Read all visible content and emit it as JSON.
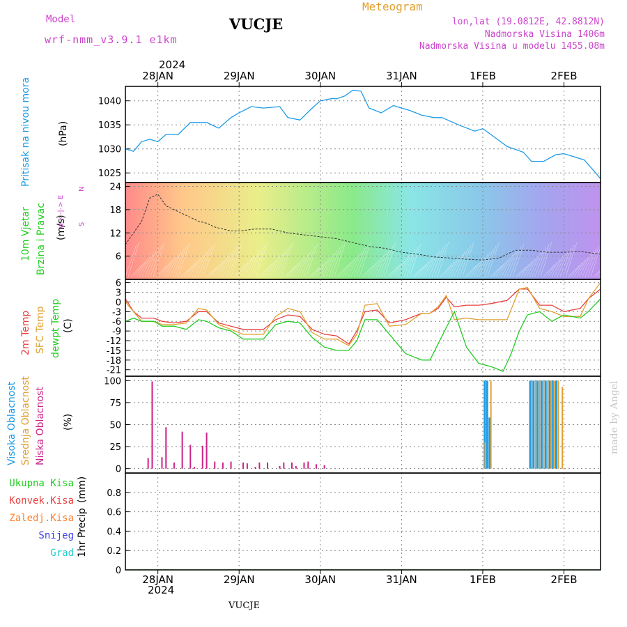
{
  "header": {
    "model_label": "Model",
    "model_name": "wrf-nmm_v3.9.1 e1km",
    "station": "VUCJE",
    "meteogram": "Meteogram",
    "lonlat": "lon,lat (19.0812E, 42.8812N)",
    "altitude": "Nadmorska Visina 1406m",
    "model_altitude": "Nadmorska Visina u modelu 1455.08m",
    "top_year": "2024",
    "bottom_year": "2024",
    "footer_station": "VUCJE",
    "watermark": "made by Angel"
  },
  "colors": {
    "pressure": "#1e9be6",
    "temp2m": "#e84040",
    "sfc_temp": "#e0a030",
    "dewpt": "#22cc22",
    "high_cloud": "#1e9be6",
    "mid_cloud": "#e0a030",
    "low_cloud": "#cc2288",
    "magenta_label": "#cc44cc",
    "precip_total": "#22cc22",
    "precip_conv": "#e84040",
    "precip_frozen": "#ff7f2a",
    "precip_snow": "#4040e0",
    "precip_grad": "#22cccc"
  },
  "panel_labels": {
    "pressure": [
      "Pritisak na nivou mora",
      "(hPa)"
    ],
    "wind": [
      "10m Vjetar",
      "Brzina i Pravac",
      "(m/s)"
    ],
    "wind_compass": [
      "N",
      "w <-|-> E",
      "S"
    ],
    "temp": [
      "2m Temp",
      "SFC Temp",
      "dewpt Temp",
      "(C)"
    ],
    "cloud": [
      "Visoka Oblacnost",
      "Srednja Oblacnost",
      "Niska Oblacnost",
      "(%)"
    ],
    "precip_legend": [
      "Ukupna Kisa",
      "Konvek.Kisa",
      "Zaledj.Kisa",
      "Snijeg",
      "Grad"
    ],
    "precip_axis": [
      "1hr Precip",
      "(mm)"
    ]
  },
  "chart_data": {
    "type": "line",
    "x_axis": {
      "start_day": 27.6,
      "end_day": 33.45,
      "day_labels": [
        "28JAN",
        "29JAN",
        "30JAN",
        "31JAN",
        "1FEB",
        "2FEB"
      ],
      "day_values": [
        28,
        29,
        30,
        31,
        32,
        33
      ]
    },
    "panels": [
      {
        "name": "pressure",
        "ylim": [
          1023,
          1043
        ],
        "yticks": [
          1025,
          1030,
          1035,
          1040
        ],
        "series": [
          {
            "name": "Pritisak",
            "x": [
              27.6,
              27.7,
              27.8,
              27.9,
              28.0,
              28.1,
              28.25,
              28.4,
              28.6,
              28.75,
              28.9,
              29.0,
              29.15,
              29.3,
              29.5,
              29.6,
              29.75,
              29.9,
              30.0,
              30.15,
              30.2,
              30.3,
              30.4,
              30.5,
              30.6,
              30.75,
              30.9,
              31.1,
              31.25,
              31.4,
              31.5,
              31.7,
              31.9,
              32.0,
              32.1,
              32.3,
              32.5,
              32.6,
              32.75,
              32.9,
              33.0,
              33.1,
              33.25,
              33.4,
              33.45
            ],
            "y": [
              1030,
              1029.5,
              1031.5,
              1032,
              1031.5,
              1033,
              1033,
              1035.5,
              1035.5,
              1034.3,
              1036.5,
              1037.5,
              1038.8,
              1038.5,
              1038.8,
              1036.5,
              1036,
              1038.5,
              1040,
              1040.5,
              1040.4,
              1041,
              1042.2,
              1042,
              1038.5,
              1037.5,
              1039,
              1038,
              1037,
              1036.5,
              1036.5,
              1035,
              1033.7,
              1034.2,
              1033,
              1030.5,
              1029.3,
              1027.4,
              1027.4,
              1028.8,
              1029,
              1028.5,
              1027.7,
              1024.8,
              1023.8
            ]
          }
        ]
      },
      {
        "name": "wind",
        "ylim": [
          0,
          25
        ],
        "yticks": [
          6,
          12,
          18,
          24
        ],
        "series": [
          {
            "name": "wind_speed",
            "x": [
              27.6,
              27.7,
              27.8,
              27.9,
              28.0,
              28.1,
              28.2,
              28.3,
              28.4,
              28.5,
              28.6,
              28.7,
              28.8,
              28.9,
              29.0,
              29.2,
              29.4,
              29.6,
              29.8,
              30.0,
              30.2,
              30.4,
              30.6,
              30.8,
              31.0,
              31.2,
              31.4,
              31.6,
              31.8,
              32.0,
              32.2,
              32.4,
              32.6,
              32.8,
              33.0,
              33.2,
              33.45
            ],
            "y": [
              9,
              12,
              15,
              21,
              22,
              19,
              18,
              17,
              16,
              15,
              14.5,
              13.5,
              13,
              12.5,
              12.5,
              13,
              13,
              12,
              11.5,
              11,
              10.5,
              9.5,
              8.5,
              8,
              7,
              6.5,
              5.8,
              5.5,
              5.2,
              5,
              5.5,
              7.5,
              7.5,
              7,
              7,
              7.2,
              6.5
            ]
          }
        ]
      },
      {
        "name": "temp",
        "ylim": [
          -23,
          7
        ],
        "yticks": [
          6,
          3,
          0,
          -3,
          -6,
          -9,
          -12,
          -15,
          -18,
          -21
        ],
        "series": [
          {
            "name": "2m Temp",
            "x": [
              27.6,
              27.7,
              27.8,
              27.95,
              28.05,
              28.2,
              28.35,
              28.5,
              28.6,
              28.75,
              28.9,
              29.05,
              29.3,
              29.45,
              29.6,
              29.75,
              29.9,
              30.05,
              30.2,
              30.35,
              30.45,
              30.55,
              30.7,
              30.85,
              31.05,
              31.25,
              31.35,
              31.45,
              31.55,
              31.65,
              31.8,
              31.95,
              32.1,
              32.3,
              32.45,
              32.55,
              32.7,
              32.85,
              33.0,
              33.2,
              33.3,
              33.45
            ],
            "y": [
              1,
              -3,
              -5,
              -5,
              -6,
              -6.5,
              -6,
              -3,
              -3,
              -6.5,
              -7.5,
              -8.5,
              -8.5,
              -5.5,
              -4,
              -4.5,
              -8.5,
              -10,
              -10.5,
              -13,
              -9,
              -3,
              -2.5,
              -6.5,
              -5.5,
              -3.5,
              -3.5,
              -2,
              1.5,
              -1.5,
              -1,
              -1,
              -0.5,
              0.5,
              4,
              4,
              -1,
              -1,
              -3,
              -2,
              1,
              4
            ]
          },
          {
            "name": "SFC Temp",
            "x": [
              27.6,
              27.7,
              27.8,
              27.95,
              28.05,
              28.2,
              28.35,
              28.5,
              28.6,
              28.75,
              28.9,
              29.05,
              29.3,
              29.45,
              29.6,
              29.75,
              29.9,
              30.05,
              30.2,
              30.35,
              30.45,
              30.55,
              30.7,
              30.85,
              31.05,
              31.25,
              31.35,
              31.45,
              31.55,
              31.65,
              31.8,
              31.95,
              32.1,
              32.3,
              32.45,
              32.55,
              32.7,
              32.85,
              33.0,
              33.2,
              33.3,
              33.45
            ],
            "y": [
              0,
              -3,
              -6,
              -6,
              -7,
              -7,
              -6.5,
              -2,
              -2.5,
              -7,
              -8.5,
              -10,
              -10,
              -4.5,
              -2,
              -3,
              -9.5,
              -11.5,
              -11.5,
              -13.5,
              -10,
              -1,
              -0.5,
              -7.5,
              -7,
              -3.5,
              -3.5,
              -1.5,
              2,
              -5.5,
              -5,
              -5.5,
              -5.5,
              -5.5,
              4,
              4.5,
              -2,
              -3,
              -4.5,
              -4.5,
              1,
              6
            ]
          },
          {
            "name": "dewpt Temp",
            "x": [
              27.6,
              27.7,
              27.8,
              27.95,
              28.05,
              28.2,
              28.35,
              28.5,
              28.6,
              28.75,
              28.9,
              29.05,
              29.3,
              29.45,
              29.6,
              29.75,
              29.9,
              30.05,
              30.2,
              30.35,
              30.45,
              30.55,
              30.7,
              30.85,
              31.05,
              31.25,
              31.35,
              31.45,
              31.55,
              31.65,
              31.8,
              31.95,
              32.1,
              32.25,
              32.35,
              32.45,
              32.55,
              32.7,
              32.85,
              33.0,
              33.2,
              33.3,
              33.45
            ],
            "y": [
              -6,
              -5,
              -6,
              -6,
              -7.5,
              -7.5,
              -8.5,
              -5.5,
              -6,
              -8,
              -9,
              -11.5,
              -11.5,
              -7,
              -6,
              -6.5,
              -11,
              -14,
              -15,
              -15,
              -12,
              -5.5,
              -5.5,
              -10,
              -16,
              -18,
              -18,
              -13,
              -8,
              -3,
              -14,
              -19,
              -20,
              -21.5,
              -16,
              -9,
              -4,
              -3,
              -6,
              -4,
              -5,
              -3,
              1
            ]
          }
        ]
      },
      {
        "name": "cloud",
        "ylim": [
          -5,
          105
        ],
        "yticks": [
          0,
          25,
          50,
          75,
          100
        ],
        "series": [
          {
            "name": "Niska Oblacnost",
            "x": [
              27.88,
              27.93,
              28.05,
              28.1,
              28.2,
              28.3,
              28.4,
              28.45,
              28.55,
              28.6,
              28.7,
              28.8,
              28.9,
              29.05,
              29.1,
              29.2,
              29.25,
              29.35,
              29.5,
              29.55,
              29.65,
              29.7,
              29.8,
              29.85,
              29.95,
              30.05,
              33.45
            ],
            "y": [
              12,
              99,
              13,
              47,
              7,
              42,
              27,
              2,
              26,
              41,
              8,
              7,
              8,
              7,
              6,
              2,
              7,
              7,
              3,
              7,
              7,
              3,
              7,
              8,
              5,
              4,
              0
            ]
          },
          {
            "name": "Visoka Oblacnost",
            "x": [
              32.02,
              32.05,
              32.08,
              32.58,
              32.62,
              32.67,
              32.72,
              32.77,
              32.82,
              32.86,
              32.9
            ],
            "y": [
              100,
              100,
              58,
              100,
              100,
              100,
              100,
              100,
              100,
              100,
              100
            ]
          },
          {
            "name": "Srednja Oblacnost",
            "x": [
              32.03,
              32.1,
              32.6,
              32.65,
              32.7,
              32.75,
              32.8,
              32.84,
              32.88,
              32.93,
              32.98
            ],
            "y": [
              30,
              100,
              100,
              100,
              100,
              100,
              100,
              100,
              100,
              100,
              93
            ]
          }
        ]
      },
      {
        "name": "precip",
        "ylim": [
          0,
          1
        ],
        "yticks": [
          0,
          0.2,
          0.4,
          0.6,
          0.8
        ],
        "series": [
          {
            "name": "Ukupna Kisa",
            "x": [
              27.6,
              33.45
            ],
            "y": [
              0,
              0
            ]
          }
        ]
      }
    ]
  }
}
